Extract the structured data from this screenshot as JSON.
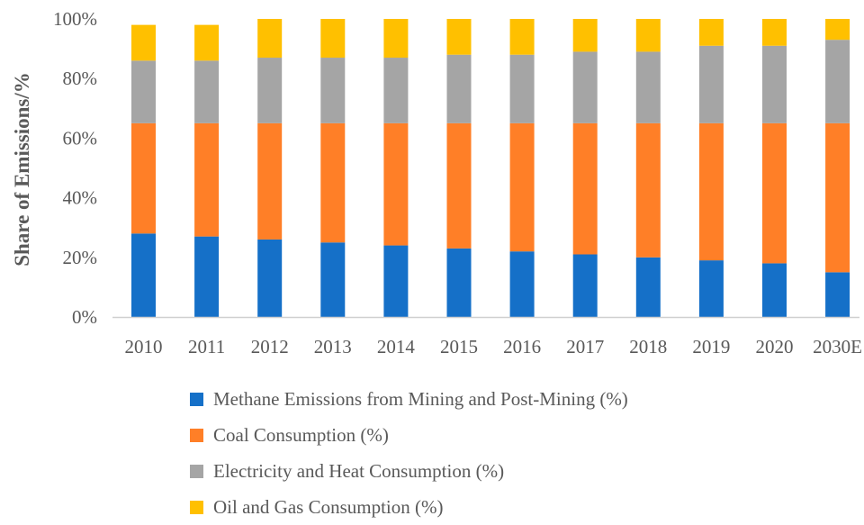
{
  "chart_data": {
    "type": "bar",
    "stacked": true,
    "title": "",
    "xlabel": "",
    "ylabel": "Share of Emissions/%",
    "ylim": [
      0,
      100
    ],
    "yticks": [
      "0%",
      "20%",
      "40%",
      "60%",
      "80%",
      "100%"
    ],
    "grid": false,
    "legend_position": "bottom",
    "categories": [
      "2010",
      "2011",
      "2012",
      "2013",
      "2014",
      "2015",
      "2016",
      "2017",
      "2018",
      "2019",
      "2020",
      "2030E"
    ],
    "series": [
      {
        "name": "Methane Emissions from Mining and Post-Mining (%)",
        "color": "#1570C8",
        "values": [
          28,
          27,
          26,
          25,
          24,
          23,
          22,
          21,
          20,
          19,
          18,
          15
        ]
      },
      {
        "name": "Coal Consumption (%)",
        "color": "#FF7F27",
        "values": [
          37,
          38,
          39,
          40,
          41,
          42,
          43,
          44,
          45,
          46,
          47,
          50
        ]
      },
      {
        "name": "Electricity and Heat Consumption (%)",
        "color": "#A5A5A5",
        "values": [
          21,
          21,
          22,
          22,
          22,
          23,
          23,
          24,
          24,
          26,
          26,
          28
        ]
      },
      {
        "name": "Oil and Gas Consumption (%)",
        "color": "#FFC000",
        "values": [
          12,
          12,
          13,
          13,
          13,
          12,
          12,
          11,
          11,
          9,
          9,
          7
        ]
      }
    ]
  }
}
